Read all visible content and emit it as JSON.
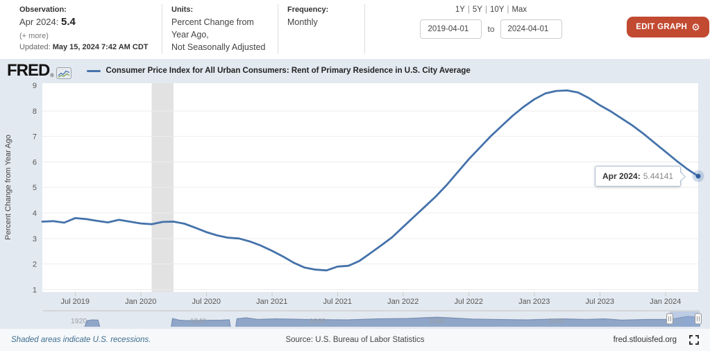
{
  "header": {
    "observation": {
      "label": "Observation:",
      "date_label": "Apr 2024:",
      "value": "5.4",
      "more_link": "(+ more)",
      "updated_label": "Updated:",
      "updated_value": "May 15, 2024 7:42 AM CDT"
    },
    "units": {
      "label": "Units:",
      "value_line1": "Percent Change from Year Ago,",
      "value_line2": "Not Seasonally Adjusted"
    },
    "frequency": {
      "label": "Frequency:",
      "value": "Monthly"
    },
    "range_selector": {
      "options": [
        "1Y",
        "5Y",
        "10Y",
        "Max"
      ],
      "separator": "|",
      "start_date": "2019-04-01",
      "to_label": "to",
      "end_date": "2024-04-01"
    },
    "edit_graph_label": "EDIT GRAPH",
    "edit_graph_icon": "gear-icon"
  },
  "legend": {
    "brand": "FRED",
    "registered_mark": "®",
    "series_label": "Consumer Price Index for All Urban Consumers: Rent of Primary Residence in U.S. City Average"
  },
  "tooltip": {
    "label": "Apr 2024:",
    "value": "5.44141"
  },
  "chart_data": {
    "type": "line",
    "title": "Consumer Price Index for All Urban Consumers: Rent of Primary Residence in U.S. City Average",
    "ylabel": "Percent Change from Year Ago",
    "ylim": [
      1,
      9
    ],
    "y_ticks": [
      1,
      2,
      3,
      4,
      5,
      6,
      7,
      8,
      9
    ],
    "x_start": "2019-04",
    "x_end": "2024-04",
    "frequency": "monthly",
    "x_ticks": [
      {
        "label": "Jul 2019",
        "month_index": 3
      },
      {
        "label": "Jan 2020",
        "month_index": 9
      },
      {
        "label": "Jul 2020",
        "month_index": 15
      },
      {
        "label": "Jan 2021",
        "month_index": 21
      },
      {
        "label": "Jul 2021",
        "month_index": 27
      },
      {
        "label": "Jan 2022",
        "month_index": 33
      },
      {
        "label": "Jul 2022",
        "month_index": 39
      },
      {
        "label": "Jan 2023",
        "month_index": 45
      },
      {
        "label": "Jul 2023",
        "month_index": 51
      },
      {
        "label": "Jan 2024",
        "month_index": 57
      }
    ],
    "recession_bands": [
      {
        "start_month_index": 10,
        "end_month_index": 12,
        "start": "2020-02",
        "end": "2020-04"
      }
    ],
    "last_point": {
      "date": "Apr 2024",
      "value": 5.44141
    },
    "values": [
      3.66,
      3.68,
      3.62,
      3.8,
      3.76,
      3.69,
      3.63,
      3.73,
      3.66,
      3.59,
      3.56,
      3.65,
      3.66,
      3.58,
      3.42,
      3.25,
      3.12,
      3.03,
      3.0,
      2.88,
      2.72,
      2.52,
      2.3,
      2.05,
      1.86,
      1.78,
      1.75,
      1.9,
      1.93,
      2.12,
      2.42,
      2.73,
      3.05,
      3.45,
      3.85,
      4.25,
      4.65,
      5.1,
      5.6,
      6.1,
      6.55,
      7.0,
      7.4,
      7.8,
      8.15,
      8.45,
      8.68,
      8.78,
      8.8,
      8.72,
      8.5,
      8.22,
      7.98,
      7.7,
      7.42,
      7.1,
      6.75,
      6.4,
      6.05,
      5.72,
      5.44141
    ]
  },
  "navigator": {
    "year_labels": [
      1920,
      1940,
      1960,
      1980,
      2000,
      2020
    ],
    "selection": {
      "start_year": 2019,
      "end_year": 2024
    },
    "segments": [
      [
        [
          1921,
          0
        ],
        [
          1921.4,
          0.45
        ],
        [
          1922.2,
          0.52
        ],
        [
          1923.2,
          0.5
        ],
        [
          1923.5,
          0
        ]
      ],
      [
        [
          1935.5,
          0
        ],
        [
          1935.7,
          0.62
        ],
        [
          1936.8,
          0.5
        ],
        [
          1938,
          0.46
        ],
        [
          1941,
          0.48
        ],
        [
          1944,
          0.5
        ],
        [
          1945.2,
          0.52
        ],
        [
          1945.4,
          0
        ]
      ],
      [
        [
          1946.3,
          0
        ],
        [
          1946.5,
          0.6
        ],
        [
          1948,
          0.68
        ],
        [
          1950,
          0.55
        ],
        [
          1953,
          0.6
        ],
        [
          1958,
          0.55
        ],
        [
          1965,
          0.52
        ],
        [
          1970,
          0.6
        ],
        [
          1975,
          0.62
        ],
        [
          1980,
          0.72
        ],
        [
          1982,
          0.68
        ],
        [
          1986,
          0.58
        ],
        [
          1990,
          0.55
        ],
        [
          1995,
          0.52
        ],
        [
          2001,
          0.6
        ],
        [
          2005,
          0.55
        ],
        [
          2008,
          0.6
        ],
        [
          2011,
          0.5
        ],
        [
          2015,
          0.55
        ],
        [
          2019,
          0.55
        ],
        [
          2022,
          0.78
        ],
        [
          2024,
          0.7
        ],
        [
          2024,
          0
        ]
      ]
    ]
  },
  "footer": {
    "recession_note": "Shaded areas indicate U.S. recessions.",
    "source": "Source: U.S. Bureau of Labor Statistics",
    "site": "fred.stlouisfed.org"
  },
  "colors": {
    "series_line": "#4472aa",
    "series_dot": "#2f5f9e",
    "halo": "rgba(70,115,178,0.25)",
    "recession_band": "#e2e2e2",
    "gridline": "#ededed",
    "panel_bg": "#e3e9f0",
    "edit_button": "#c14a31",
    "nav_area_fill": "#8fa6c8",
    "nav_area_line": "#7991b5",
    "nav_mask": "rgba(145,170,215,0.45)",
    "note_link": "#3d6d8f"
  }
}
